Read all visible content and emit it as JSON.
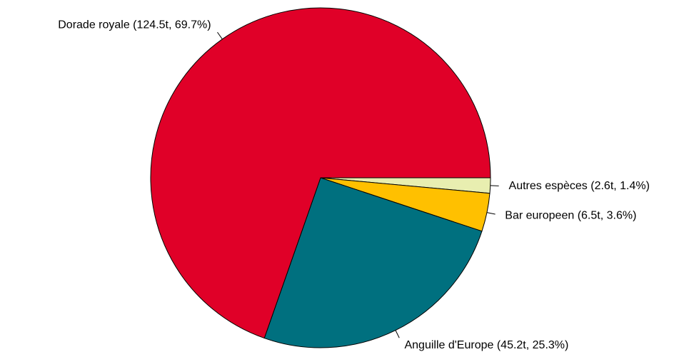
{
  "chart_data": {
    "type": "pie",
    "values": [
      2.6,
      6.5,
      45.2,
      124.5
    ],
    "value_labels": [
      "Autres espèces (2.6t, 1.4%)",
      "Bar europeen (6.5t, 3.6%)",
      "Anguille d'Europe (45.2t, 25.3%)",
      "Dorade royale (124.5t, 69.7%)"
    ],
    "colors": [
      "#e8eeb0",
      "#ffc000",
      "#00707f",
      "#e00028"
    ],
    "direction": "clockwise",
    "start_angle": 0
  }
}
